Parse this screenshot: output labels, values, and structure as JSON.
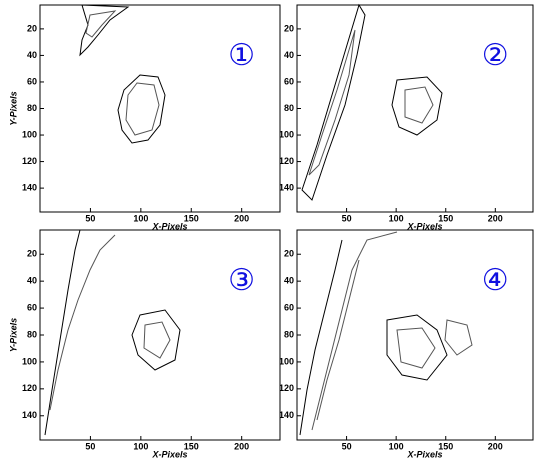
{
  "chart_data": [
    {
      "type": "contour",
      "annotation": "①",
      "xlabel": "X-Pixels",
      "ylabel": "Y-Pixels",
      "xlim": [
        0,
        238
      ],
      "ylim": [
        2,
        158
      ],
      "xticks": [
        50,
        100,
        150,
        200
      ],
      "yticks": [
        20,
        40,
        60,
        80,
        100,
        120,
        140
      ]
    },
    {
      "type": "contour",
      "annotation": "②",
      "xlabel": "X-Pixels",
      "xlim": [
        0,
        238
      ],
      "ylim": [
        2,
        158
      ],
      "xticks": [
        50,
        100,
        150,
        200
      ],
      "yticks": [
        20,
        40,
        60,
        80,
        100,
        120,
        140
      ]
    },
    {
      "type": "contour",
      "annotation": "③",
      "xlabel": "X-Pixels",
      "ylabel": "Y-Pixels",
      "xlim": [
        0,
        238
      ],
      "ylim": [
        2,
        158
      ],
      "xticks": [
        50,
        100,
        150,
        200
      ],
      "yticks": [
        20,
        40,
        60,
        80,
        100,
        120,
        140
      ]
    },
    {
      "type": "contour",
      "annotation": "④",
      "xlabel": "X-Pixels",
      "xlim": [
        0,
        238
      ],
      "ylim": [
        2,
        158
      ],
      "xticks": [
        50,
        100,
        150,
        200
      ],
      "yticks": [
        20,
        40,
        60,
        80,
        100,
        120,
        140
      ]
    }
  ]
}
